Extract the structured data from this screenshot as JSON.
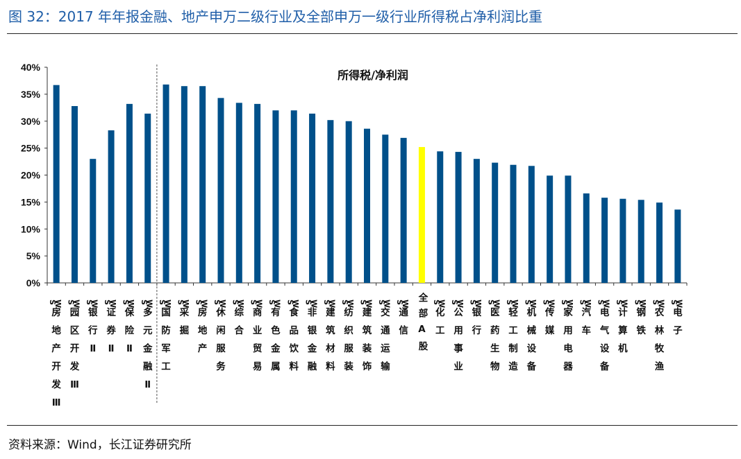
{
  "header": {
    "title": "图 32：2017 年年报金融、地产申万二级行业及全部申万一级行业所得税占净利润比重"
  },
  "footer": {
    "source": "资料来源：Wind，长江证券研究所"
  },
  "chart_data": {
    "type": "bar",
    "title": "",
    "legend": "所得税/净利润",
    "legend_position": "top-center",
    "ylim": [
      0,
      40
    ],
    "yticks": [
      "0%",
      "5%",
      "10%",
      "15%",
      "20%",
      "25%",
      "30%",
      "35%",
      "40%"
    ],
    "grid": false,
    "colors": {
      "default": "#00508a",
      "highlight": "#ffff00"
    },
    "highlight_category": "全部A股",
    "categories": [
      "SW房地产开发Ⅲ",
      "SW园区开发Ⅲ",
      "SW银行Ⅱ",
      "SW证券Ⅱ",
      "SW保险Ⅱ",
      "SW多元金融Ⅱ",
      "SW国防军工",
      "SW采掘",
      "SW房地产",
      "SW休闲服务",
      "SW综合",
      "SW商业贸易",
      "SW有色金属",
      "SW食品饮料",
      "SW非银金融",
      "SW建筑材料",
      "SW纺织服装",
      "SW建筑装饰",
      "SW交通运输",
      "SW通信",
      "全部A股",
      "SW化工",
      "SW公用事业",
      "SW银行",
      "SW医药生物",
      "SW轻工制造",
      "SW机械设备",
      "SW传媒",
      "SW家用电器",
      "SW汽车",
      "SW电气设备",
      "SW计算机",
      "SW钢铁",
      "SW农林牧渔",
      "SW电子"
    ],
    "values": [
      36.7,
      32.8,
      23.0,
      28.3,
      33.2,
      31.4,
      36.8,
      36.5,
      36.5,
      34.3,
      33.4,
      33.2,
      32.0,
      32.0,
      31.4,
      30.2,
      30.0,
      28.6,
      27.5,
      26.9,
      25.2,
      24.4,
      24.3,
      23.0,
      22.3,
      21.9,
      21.7,
      19.9,
      19.9,
      16.6,
      15.8,
      15.6,
      15.4,
      14.9,
      13.6
    ]
  }
}
